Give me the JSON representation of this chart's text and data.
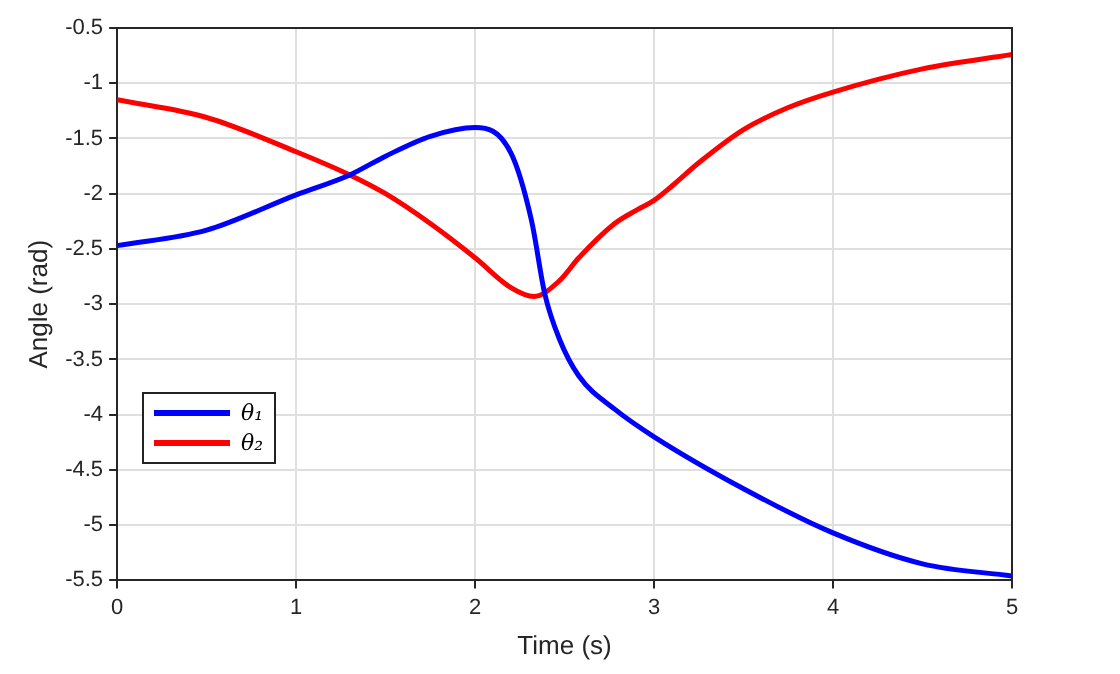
{
  "chart_data": {
    "type": "line",
    "xlabel": "Time (s)",
    "ylabel": "Angle (rad)",
    "xlim": [
      0,
      5
    ],
    "xticks": [
      0,
      1,
      2,
      3,
      4,
      5
    ],
    "ylim": [
      -5.5,
      -0.5
    ],
    "yticks": [
      -5.5,
      -5,
      -4.5,
      -4,
      -3.5,
      -3,
      -2.5,
      -2,
      -1.5,
      -1,
      -0.5
    ],
    "grid": true,
    "legend": "bottom left",
    "marker": "none",
    "line_style": "solid",
    "series": [
      {
        "name": "θ₁",
        "color": "#0000ff",
        "x": [
          0,
          0.5,
          1,
          1.3,
          1.5,
          1.75,
          2,
          2.2,
          2.315,
          2.39,
          2.47,
          2.58,
          2.78,
          3,
          3.5,
          4,
          4.5,
          5
        ],
        "values": [
          -2.47,
          -2.33,
          -2.01,
          -1.83,
          -1.66,
          -1.48,
          -1.4,
          -1.63,
          -2.24,
          -2.91,
          -3.31,
          -3.65,
          -3.95,
          -4.2,
          -4.67,
          -5.07,
          -5.35,
          -5.46
        ]
      },
      {
        "name": "θ₂",
        "color": "#ff0000",
        "x": [
          0,
          0.5,
          1,
          1.3,
          1.5,
          1.75,
          2,
          2.2,
          2.33,
          2.47,
          2.58,
          2.78,
          2.9,
          3,
          3.1,
          3.25,
          3.5,
          3.75,
          4,
          4.5,
          5
        ],
        "values": [
          -1.15,
          -1.31,
          -1.62,
          -1.83,
          -2.0,
          -2.27,
          -2.58,
          -2.85,
          -2.93,
          -2.79,
          -2.58,
          -2.27,
          -2.15,
          -2.06,
          -1.93,
          -1.72,
          -1.42,
          -1.22,
          -1.08,
          -0.87,
          -0.74
        ]
      }
    ]
  }
}
